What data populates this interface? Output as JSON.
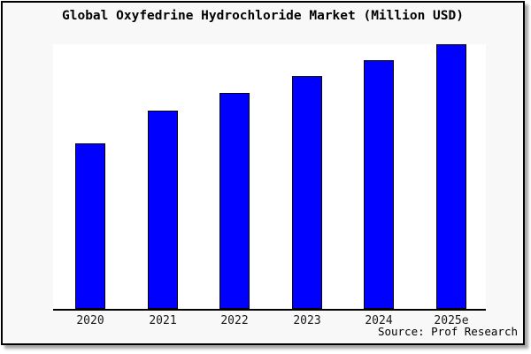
{
  "window": {
    "title": "Global Oxyfedrine Hydrochloride Market (Million USD)",
    "source_note": "Source: Prof Research"
  },
  "colors": {
    "bar_fill": "#0000fe",
    "bar_border": "#000000",
    "frame_background": "#f8f8f8",
    "plot_background": "#ffffff",
    "axis": "#000000",
    "frame_border": "#000000"
  },
  "chart_data": {
    "type": "bar",
    "title": "Global Oxyfedrine Hydrochloride Market (Million USD)",
    "categories": [
      "2020",
      "2021",
      "2022",
      "2023",
      "2024",
      "2025e"
    ],
    "values": [
      62.5,
      75,
      81.5,
      88,
      94,
      100
    ],
    "units": "relative index; no y-axis tick labels are shown in the chart, values estimated from bar heights with 2025e = 100",
    "xlabel": "",
    "ylabel": "",
    "ylim": [
      0,
      100
    ],
    "grid": false,
    "legend": false,
    "y_axis_labels_visible": false,
    "source": "Source: Prof Research"
  }
}
